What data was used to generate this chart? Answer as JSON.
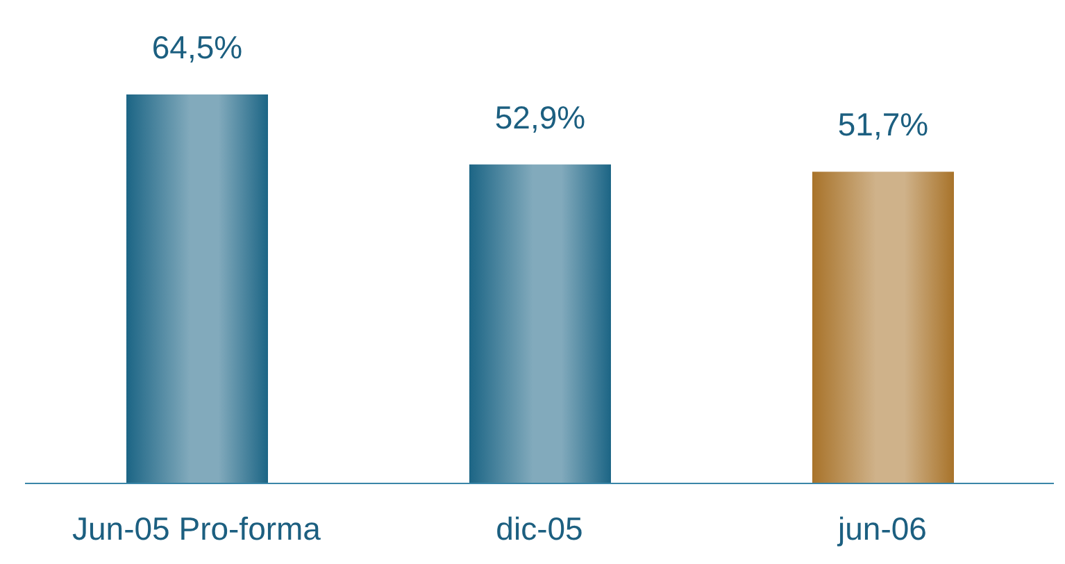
{
  "chart_data": {
    "type": "bar",
    "categories": [
      "Jun-05 Pro-forma",
      "dic-05",
      "jun-06"
    ],
    "values": [
      64.5,
      52.9,
      51.7
    ],
    "value_labels": [
      "64,5%",
      "52,9%",
      "51,7%"
    ],
    "colors": [
      "#1c6585",
      "#1c6585",
      "#a8732a"
    ],
    "grid": false,
    "legend": false
  }
}
